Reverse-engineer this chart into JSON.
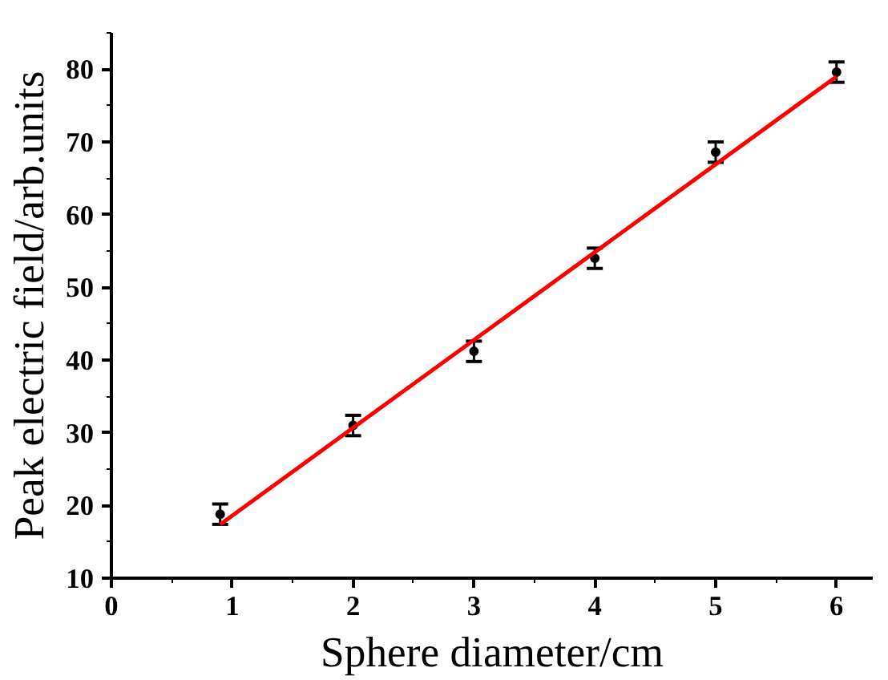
{
  "chart_data": {
    "type": "scatter",
    "xlabel": "Sphere diameter/cm",
    "ylabel": "Peak electric field/arb.units",
    "xlim": [
      0,
      6.3
    ],
    "ylim": [
      10,
      85
    ],
    "xticks": [
      0,
      1,
      2,
      3,
      4,
      5,
      6
    ],
    "yticks": [
      10,
      20,
      30,
      40,
      50,
      60,
      70,
      80
    ],
    "grid": false,
    "series": [
      {
        "color": "#000000",
        "marker": "circle",
        "x": [
          0.9,
          2,
          3,
          4,
          5,
          6
        ],
        "values": [
          18.8,
          31.0,
          41.2,
          54.0,
          68.6,
          79.6
        ],
        "errors": [
          1.4,
          1.4,
          1.4,
          1.4,
          1.4,
          1.4
        ]
      },
      {
        "type": "line",
        "color": "#ff0000",
        "marker": "none",
        "line_style": "solid",
        "x": [
          0.9,
          6
        ],
        "values": [
          17.4,
          79.0
        ]
      }
    ]
  }
}
